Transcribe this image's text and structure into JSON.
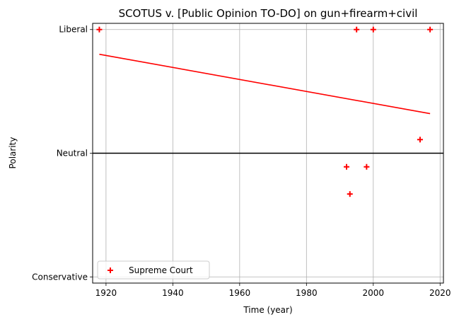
{
  "chart_data": {
    "type": "scatter",
    "title": "SCOTUS v. [Public Opinion TO-DO] on gun+firearm+civil",
    "xlabel": "Time (year)",
    "ylabel": "Polarity",
    "xlim": [
      1916,
      2021
    ],
    "ylim": [
      -1.05,
      1.05
    ],
    "x_ticks": [
      1920,
      1940,
      1960,
      1980,
      2000,
      2020
    ],
    "y_ticks": [
      {
        "value": -1,
        "label": "Conservative"
      },
      {
        "value": 0,
        "label": "Neutral"
      },
      {
        "value": 1,
        "label": "Liberal"
      }
    ],
    "grid": true,
    "legend_position": "lower-left",
    "series": [
      {
        "name": "Supreme Court",
        "marker": "plus",
        "color": "#ff0000",
        "points": [
          {
            "x": 1918,
            "y": 1.0
          },
          {
            "x": 1992,
            "y": -0.11
          },
          {
            "x": 1993,
            "y": -0.33
          },
          {
            "x": 1995,
            "y": 1.0
          },
          {
            "x": 1998,
            "y": -0.11
          },
          {
            "x": 2000,
            "y": 1.0
          },
          {
            "x": 2014,
            "y": 0.11
          },
          {
            "x": 2017,
            "y": 1.0
          }
        ]
      }
    ],
    "trend_line": {
      "color": "#ff0000",
      "x": [
        1918,
        2017
      ],
      "y": [
        0.8,
        0.32
      ]
    },
    "reference_line": {
      "y": 0,
      "color": "#000000"
    }
  }
}
